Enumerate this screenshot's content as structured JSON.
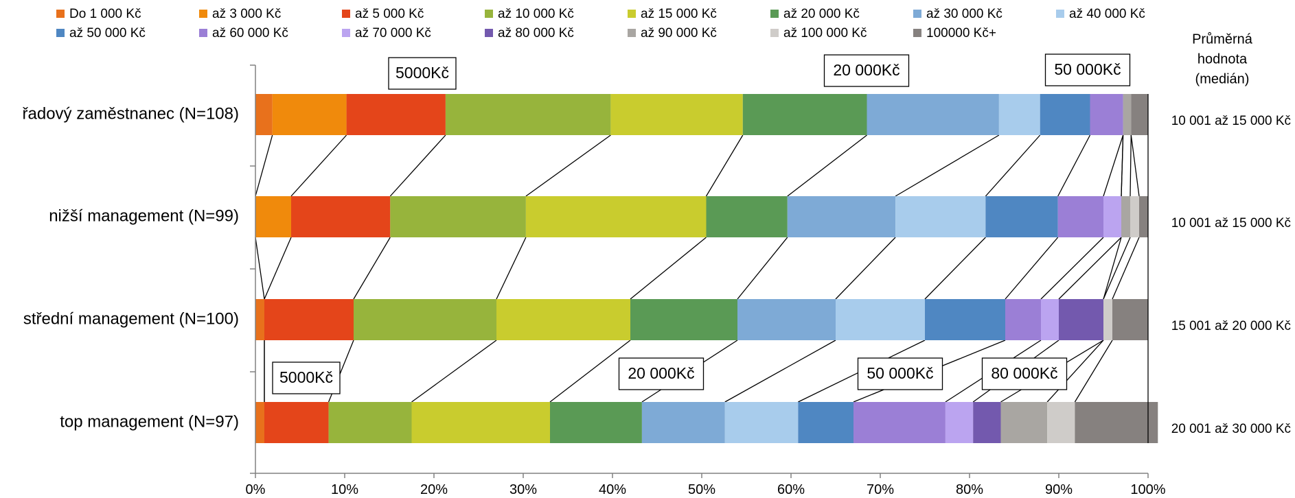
{
  "chart_data": {
    "type": "bar",
    "stacked": "100%",
    "orientation": "horizontal",
    "categories": [
      "řadový zaměstnanec (N=108)",
      "nižší management (N=99)",
      "střední management (N=100)",
      "top management (N=97)"
    ],
    "series": [
      {
        "name": "Do 1 000 Kč",
        "color": "#E8711C",
        "values": [
          1.9,
          0.0,
          1.0,
          1.0
        ]
      },
      {
        "name": "až 3 000 Kč",
        "color": "#F08A0C",
        "values": [
          8.3,
          4.0,
          0.0,
          0.0
        ]
      },
      {
        "name": "až 5 000 Kč",
        "color": "#E4451A",
        "values": [
          11.1,
          11.1,
          10.0,
          7.2
        ]
      },
      {
        "name": "až 10 000 Kč",
        "color": "#97B43C",
        "values": [
          18.5,
          15.2,
          16.0,
          9.3
        ]
      },
      {
        "name": "až 15 000 Kč",
        "color": "#C9CC2E",
        "values": [
          14.8,
          20.2,
          15.0,
          15.5
        ]
      },
      {
        "name": "až 20 000 Kč",
        "color": "#5A9A55",
        "values": [
          13.9,
          9.1,
          12.0,
          10.3
        ]
      },
      {
        "name": "až 30 000 Kč",
        "color": "#7EAAD6",
        "values": [
          14.8,
          12.1,
          11.0,
          9.3
        ]
      },
      {
        "name": "až 40 000 Kč",
        "color": "#A8CCEC",
        "values": [
          4.6,
          10.1,
          10.0,
          8.2
        ]
      },
      {
        "name": "až 50 000 Kč",
        "color": "#4F87C2",
        "values": [
          5.6,
          8.1,
          9.0,
          6.2
        ]
      },
      {
        "name": "až 60 000 Kč",
        "color": "#9B7FD6",
        "values": [
          3.7,
          5.1,
          4.0,
          10.3
        ]
      },
      {
        "name": "až 70 000 Kč",
        "color": "#BBA4F0",
        "values": [
          0.0,
          2.0,
          2.0,
          3.1
        ]
      },
      {
        "name": "až 80 000 Kč",
        "color": "#7359AE",
        "values": [
          0.0,
          0.0,
          5.0,
          3.1
        ]
      },
      {
        "name": "až 90 000 Kč",
        "color": "#A9A6A2",
        "values": [
          0.9,
          1.0,
          0.0,
          5.2
        ]
      },
      {
        "name": "až 100 000 Kč",
        "color": "#CFCCC9",
        "values": [
          0.0,
          1.0,
          1.0,
          3.1
        ]
      },
      {
        "name": "100000 Kč+",
        "color": "#86817F",
        "values": [
          1.9,
          1.0,
          4.0,
          9.3
        ]
      }
    ],
    "xlim": [
      0,
      100
    ],
    "x_ticks": [
      "0%",
      "10%",
      "20%",
      "30%",
      "40%",
      "50%",
      "60%",
      "70%",
      "80%",
      "90%",
      "100%"
    ],
    "legend_position": "top",
    "median_header": [
      "Průměrná",
      "hodnota",
      "(medián)"
    ],
    "medians": [
      "10 001 až 15 000 Kč",
      "10 001 až 15 000 Kč",
      "15 001 až 20 000 Kč",
      "20 001 až 30 000 Kč"
    ],
    "annotations": [
      {
        "text": "5000Kč",
        "row": 0,
        "at_series": 2
      },
      {
        "text": "20 000Kč",
        "row": 0,
        "at_series": 5
      },
      {
        "text": "50 000Kč",
        "row": 0,
        "at_series": 8
      },
      {
        "text": "5000Kč",
        "row": 3,
        "at_series": 2
      },
      {
        "text": "20 000Kč",
        "row": 3,
        "at_series": 5
      },
      {
        "text": "50 000Kč",
        "row": 3,
        "at_series": 8
      },
      {
        "text": "80 000Kč",
        "row": 3,
        "at_series": 11
      }
    ]
  }
}
